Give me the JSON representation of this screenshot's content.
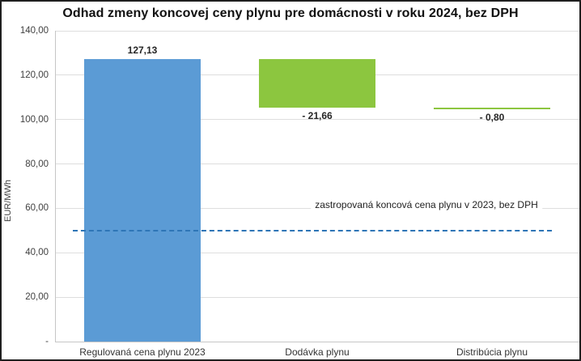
{
  "chart_data": {
    "type": "bar",
    "subtype": "waterfall",
    "title": "Odhad zmeny koncovej ceny plynu pre domácnosti v roku 2024, bez DPH",
    "xlabel": "",
    "ylabel": "EUR/MWh",
    "ylim": [
      0,
      140
    ],
    "ytick_step": 20,
    "grid": true,
    "legend": false,
    "yticks": [
      {
        "value": 140,
        "label": "140,00"
      },
      {
        "value": 120,
        "label": "120,00"
      },
      {
        "value": 100,
        "label": "100,00"
      },
      {
        "value": 80,
        "label": "80,00"
      },
      {
        "value": 60,
        "label": "60,00"
      },
      {
        "value": 40,
        "label": "40,00"
      },
      {
        "value": 20,
        "label": "20,00"
      },
      {
        "value": 0,
        "label": "-"
      }
    ],
    "categories": [
      "Regulovaná cena plynu 2023",
      "Dodávka plynu",
      "Distribúcia plynu"
    ],
    "bars": [
      {
        "category": "Regulovaná cena plynu 2023",
        "base": 0,
        "top": 127.13,
        "change": 127.13,
        "label": "127,13",
        "label_position": "above",
        "color": "#5b9bd5"
      },
      {
        "category": "Dodávka plynu",
        "base": 105.47,
        "top": 127.13,
        "change": -21.66,
        "label": "- 21,66",
        "label_position": "below",
        "color": "#8cc63f"
      },
      {
        "category": "Distribúcia plynu",
        "base": 104.67,
        "top": 105.47,
        "change": -0.8,
        "label": "- 0,80",
        "label_position": "below",
        "color": "#8cc63f"
      }
    ],
    "reference_line": {
      "value": 50,
      "style": "dashed",
      "color": "#2e75b6",
      "label": "zastropovaná koncová cena plynu v 2023, bez DPH"
    }
  }
}
